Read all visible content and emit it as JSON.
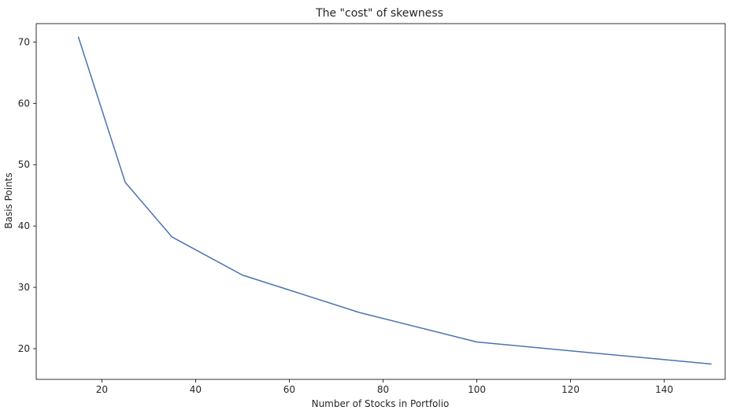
{
  "chart_data": {
    "type": "line",
    "title": "The \"cost\" of skewness",
    "xlabel": "Number of Stocks in Portfolio",
    "ylabel": "Basis Points",
    "xlim": [
      6,
      153
    ],
    "ylim": [
      15,
      73
    ],
    "xticks": [
      20,
      40,
      60,
      80,
      100,
      120,
      140
    ],
    "yticks": [
      20,
      30,
      40,
      50,
      60,
      70
    ],
    "grid": false,
    "legend": "none",
    "series": [
      {
        "color": "#4c72b0",
        "x": [
          15,
          25,
          35,
          50,
          75,
          100,
          150
        ],
        "y": [
          70.8,
          47.1,
          38.2,
          32.0,
          25.9,
          21.1,
          17.5
        ]
      }
    ]
  }
}
